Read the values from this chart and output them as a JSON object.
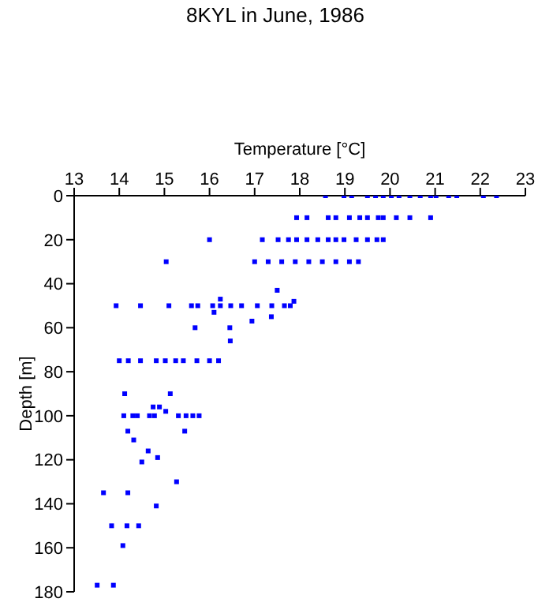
{
  "chart_data": {
    "type": "scatter",
    "title": "8KYL in June, 1986",
    "xlabel": "Temperature [°C]",
    "ylabel": "Depth [m]",
    "x": [
      18.57,
      18.98,
      19.15,
      19.5,
      19.68,
      19.85,
      20.03,
      20.2,
      20.44,
      20.67,
      20.9,
      21.02,
      21.3,
      21.48,
      22.07,
      22.36,
      17.93,
      18.16,
      18.63,
      18.8,
      19.1,
      19.33,
      19.5,
      19.74,
      19.85,
      20.14,
      20.44,
      20.9,
      16.0,
      17.17,
      17.52,
      17.75,
      17.93,
      18.16,
      18.4,
      18.63,
      18.8,
      18.98,
      19.25,
      19.5,
      19.71,
      19.85,
      15.04,
      17.0,
      17.3,
      17.6,
      17.9,
      18.2,
      18.5,
      18.8,
      19.1,
      19.3,
      17.5,
      16.24,
      17.87,
      13.93,
      14.47,
      15.1,
      15.6,
      15.74,
      16.07,
      16.24,
      16.47,
      16.71,
      17.06,
      17.38,
      17.66,
      17.79,
      16.1,
      17.37,
      16.94,
      15.68,
      16.45,
      16.46,
      14.0,
      14.2,
      14.47,
      14.82,
      15.02,
      15.25,
      15.42,
      15.72,
      16.0,
      16.2,
      14.12,
      15.13,
      14.75,
      14.89,
      15.03,
      14.1,
      14.3,
      14.4,
      14.67,
      14.78,
      15.31,
      15.48,
      15.63,
      15.77,
      14.19,
      15.45,
      14.32,
      14.64,
      14.85,
      14.5,
      15.27,
      13.65,
      14.19,
      14.82,
      13.83,
      14.17,
      14.43,
      14.08,
      13.51,
      13.87
    ],
    "series": [
      {
        "color": "#0000ff",
        "values": [
          0,
          0,
          0,
          0,
          0,
          0,
          0,
          0,
          0,
          0,
          0,
          0,
          0,
          0,
          0,
          0,
          10,
          10,
          10,
          10,
          10,
          10,
          10,
          10,
          10,
          10,
          10,
          10,
          20,
          20,
          20,
          20,
          20,
          20,
          20,
          20,
          20,
          20,
          20,
          20,
          20,
          20,
          30,
          30,
          30,
          30,
          30,
          30,
          30,
          30,
          30,
          30,
          43,
          47,
          48,
          50,
          50,
          50,
          50,
          50,
          50,
          50,
          50,
          50,
          50,
          50,
          50,
          50,
          53,
          55,
          57,
          60,
          60,
          66,
          75,
          75,
          75,
          75,
          75,
          75,
          75,
          75,
          75,
          75,
          90,
          90,
          96,
          96,
          98,
          100,
          100,
          100,
          100,
          100,
          100,
          100,
          100,
          100,
          107,
          107,
          111,
          116,
          119,
          121,
          130,
          135,
          135,
          141,
          150,
          150,
          150,
          159,
          177,
          177
        ]
      }
    ],
    "xlim": [
      13,
      23
    ],
    "xticks": [
      13,
      14,
      15,
      16,
      17,
      18,
      19,
      20,
      21,
      22,
      23
    ],
    "ylim": [
      180,
      0
    ],
    "yticks": [
      0,
      20,
      40,
      60,
      80,
      100,
      120,
      140,
      160,
      180
    ],
    "grid": false,
    "legend": false,
    "marker": "square"
  }
}
